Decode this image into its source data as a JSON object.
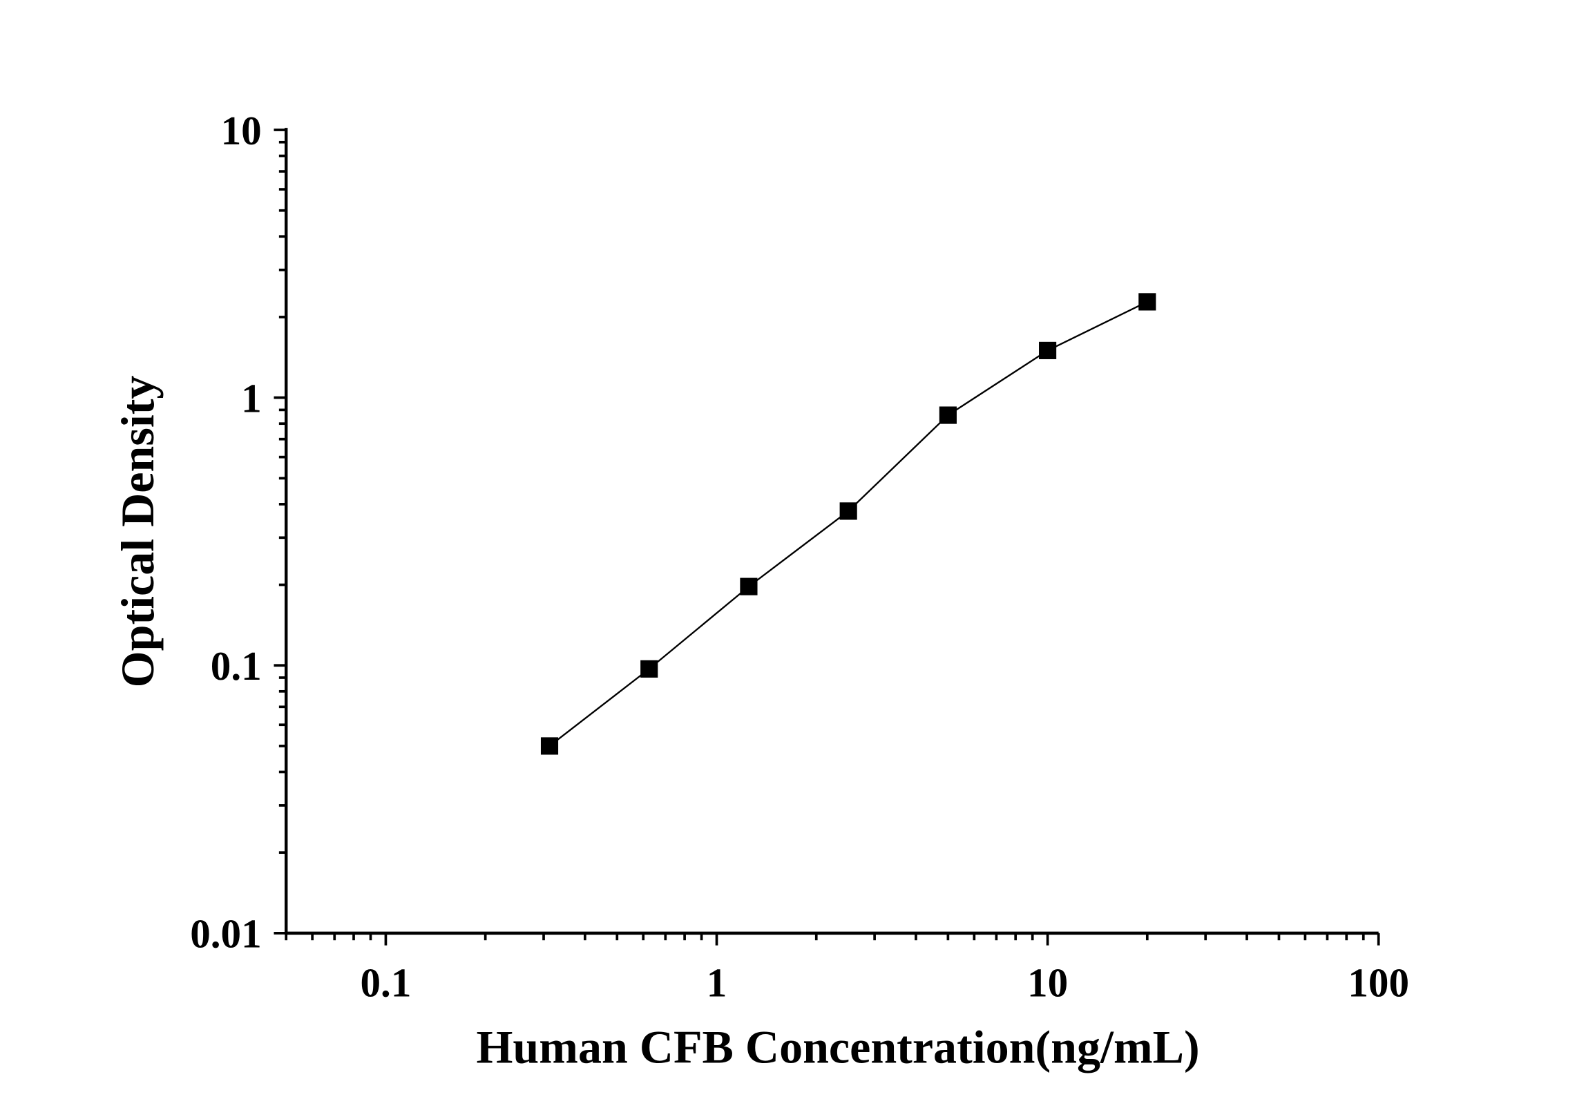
{
  "chart_data": {
    "type": "line",
    "title": "",
    "xlabel": "Human CFB Concentration(ng/mL)",
    "ylabel": "Optical Density",
    "x_scale": "log",
    "y_scale": "log",
    "xlim": [
      0.05,
      100
    ],
    "ylim": [
      0.01,
      10
    ],
    "x_ticks": [
      0.1,
      1,
      10,
      100
    ],
    "x_tick_labels": [
      "0.1",
      "1",
      "10",
      "100"
    ],
    "y_ticks": [
      0.01,
      0.1,
      1,
      10
    ],
    "y_tick_labels": [
      "0.01",
      "0.1",
      "1",
      "10"
    ],
    "grid": false,
    "legend": "none",
    "marker": "square",
    "color": "#000000",
    "series": [
      {
        "x": [
          0.3125,
          0.625,
          1.25,
          2.5,
          5,
          10,
          20
        ],
        "y": [
          0.05,
          0.097,
          0.197,
          0.377,
          0.86,
          1.5,
          2.28
        ]
      }
    ]
  }
}
